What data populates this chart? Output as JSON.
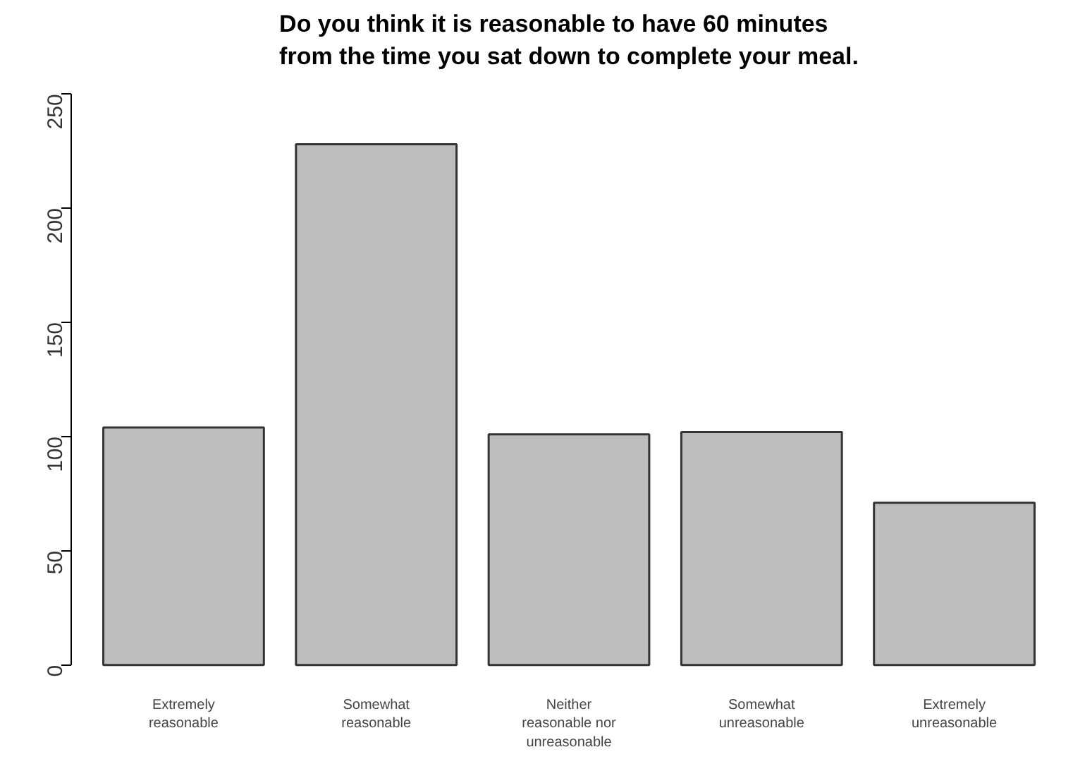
{
  "chart_data": {
    "type": "bar",
    "title": "Do you think it is reasonable to have 60 minutes\nfrom the time you sat down to complete your meal.",
    "categories": [
      "Extremely\nreasonable",
      "Somewhat\nreasonable",
      "Neither\nreasonable nor\nunreasonable",
      "Somewhat\nunreasonable",
      "Extremely\nunreasonable"
    ],
    "values": [
      104,
      228,
      101,
      102,
      71
    ],
    "color": "#bebebe",
    "ylim": [
      0,
      250
    ],
    "yticks": [
      0,
      50,
      100,
      150,
      200,
      250
    ],
    "grid": false
  }
}
